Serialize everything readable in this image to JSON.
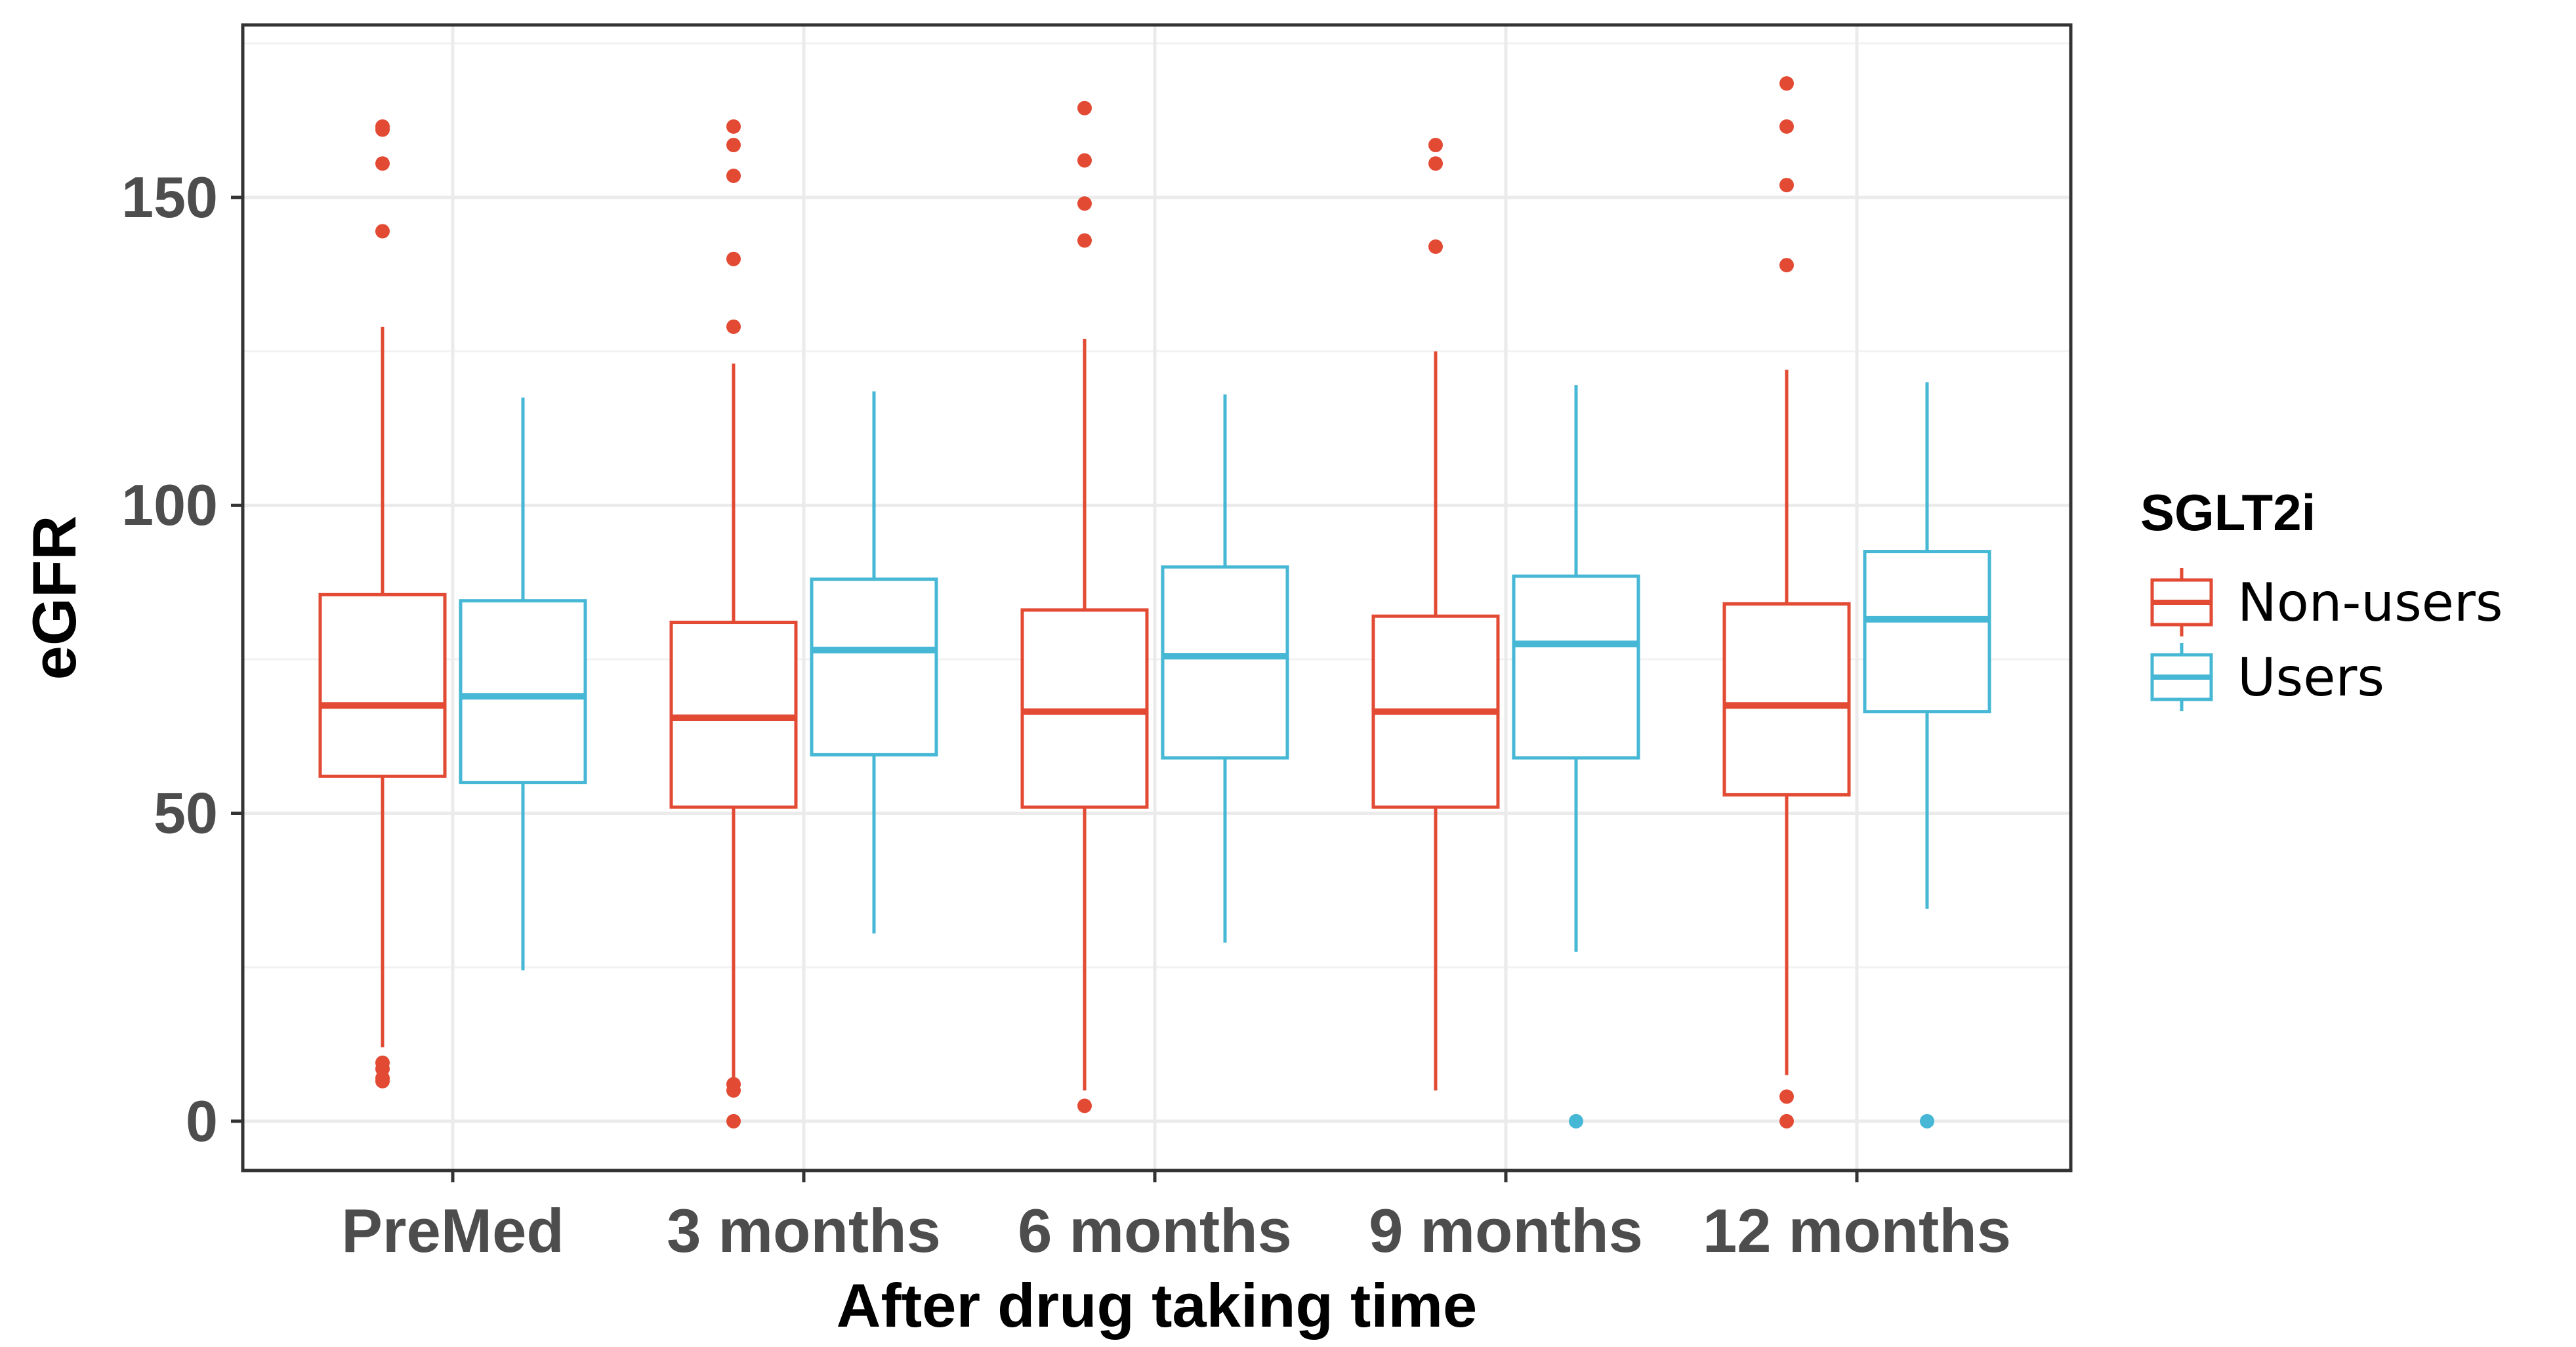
{
  "chart_data": {
    "type": "box",
    "title": "",
    "xlabel": "After drug taking time",
    "ylabel": "eGFR",
    "ylim": [
      -8,
      178
    ],
    "yticks": [
      0,
      50,
      100,
      150
    ],
    "grid": true,
    "legend": {
      "title": "SGLT2i",
      "position": "right"
    },
    "categories": [
      "PreMed",
      "3 months",
      "6 months",
      "9 months",
      "12 months"
    ],
    "series": [
      {
        "name": "Non-users",
        "color": "#e24a33",
        "boxes": [
          {
            "whisker_low": 12,
            "q1": 56,
            "median": 67.5,
            "q3": 85.5,
            "whisker_high": 129,
            "outliers": [
              161.5,
              161,
              155.5,
              144.5,
              9.5,
              8.5,
              7,
              6.5
            ]
          },
          {
            "whisker_low": 7,
            "q1": 51,
            "median": 65.5,
            "q3": 81,
            "whisker_high": 123,
            "outliers": [
              161.5,
              158.5,
              153.5,
              140,
              129,
              6,
              5,
              0
            ]
          },
          {
            "whisker_low": 5,
            "q1": 51,
            "median": 66.5,
            "q3": 83,
            "whisker_high": 127,
            "outliers": [
              164.5,
              156,
              149,
              143,
              2.5
            ]
          },
          {
            "whisker_low": 5,
            "q1": 51,
            "median": 66.5,
            "q3": 82,
            "whisker_high": 125,
            "outliers": [
              158.5,
              155.5,
              142
            ]
          },
          {
            "whisker_low": 7.5,
            "q1": 53,
            "median": 67.5,
            "q3": 84,
            "whisker_high": 122,
            "outliers": [
              168.5,
              161.5,
              152,
              139,
              4,
              0
            ]
          }
        ]
      },
      {
        "name": "Users",
        "color": "#46b7d4",
        "boxes": [
          {
            "whisker_low": 24.5,
            "q1": 55,
            "median": 69,
            "q3": 84.5,
            "whisker_high": 117.5,
            "outliers": []
          },
          {
            "whisker_low": 30.5,
            "q1": 59.5,
            "median": 76.5,
            "q3": 88,
            "whisker_high": 118.5,
            "outliers": []
          },
          {
            "whisker_low": 29,
            "q1": 59,
            "median": 75.5,
            "q3": 90,
            "whisker_high": 118,
            "outliers": []
          },
          {
            "whisker_low": 27.5,
            "q1": 59,
            "median": 77.5,
            "q3": 88.5,
            "whisker_high": 119.5,
            "outliers": [
              0
            ]
          },
          {
            "whisker_low": 34.5,
            "q1": 66.5,
            "median": 81.5,
            "q3": 92.5,
            "whisker_high": 120,
            "outliers": [
              0
            ]
          }
        ]
      }
    ]
  }
}
